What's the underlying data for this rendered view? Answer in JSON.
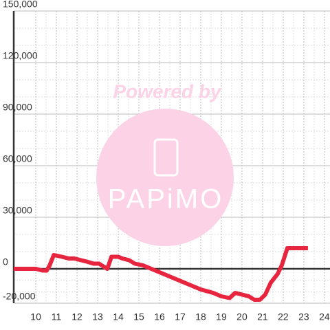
{
  "chart_data": {
    "type": "line",
    "watermark": {
      "title": "Powered by",
      "logo": "PAPiMO"
    },
    "x": [
      8.93,
      10.0,
      10.33,
      10.53,
      10.67,
      10.87,
      11.27,
      11.6,
      11.87,
      12.2,
      12.53,
      12.8,
      13.07,
      13.33,
      13.47,
      13.67,
      14.0,
      14.2,
      14.53,
      14.8,
      15.2,
      15.6,
      16.0,
      16.6,
      17.0,
      17.6,
      18.0,
      18.6,
      19.0,
      19.4,
      19.67,
      20.0,
      20.33,
      20.6,
      20.87,
      21.13,
      21.4,
      21.73,
      21.93,
      22.2,
      23.2
    ],
    "series": [
      {
        "color": "#e8253e",
        "values": [
          0,
          0,
          -1000,
          -1000,
          2000,
          8000,
          7000,
          6000,
          6000,
          5000,
          4000,
          3000,
          3000,
          1000,
          0,
          7000,
          7000,
          6000,
          5000,
          3000,
          2000,
          0,
          -2000,
          -5000,
          -7000,
          -10000,
          -12000,
          -14000,
          -16000,
          -17000,
          -14000,
          -15000,
          -16000,
          -18000,
          -18000,
          -15000,
          -8000,
          -3000,
          2000,
          12000,
          12000
        ]
      }
    ],
    "xlim": [
      8.93,
      24.27
    ],
    "xticks": [
      10,
      11,
      12,
      13,
      14,
      15,
      16,
      17,
      18,
      19,
      20,
      21,
      22,
      23,
      24
    ],
    "ylim": [
      -20000,
      150000
    ],
    "yticks": [
      {
        "value": -20000,
        "label": "-20,000"
      },
      0,
      {
        "value": 30000,
        "label": "30,000"
      },
      {
        "value": 60000,
        "label": "60,000"
      },
      {
        "value": 90000,
        "label": "90,000"
      },
      {
        "value": 120000,
        "label": "120,000"
      },
      {
        "value": 150000,
        "label": "150,000"
      }
    ],
    "grid": true
  }
}
